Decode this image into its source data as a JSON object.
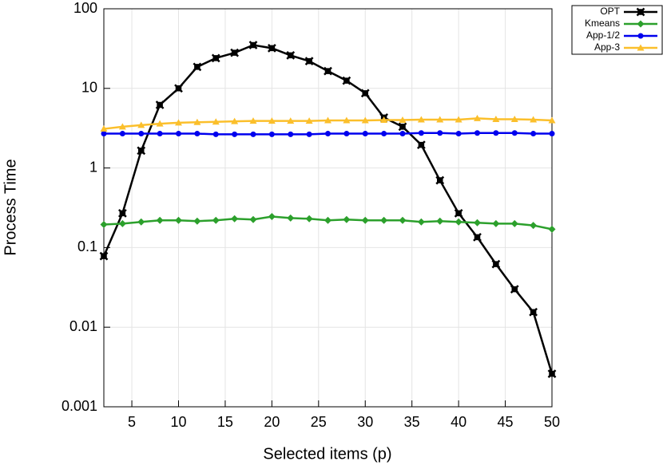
{
  "chart_data": {
    "type": "line",
    "x_label": "Selected items (p)",
    "y_label": "Process Time",
    "x": [
      2,
      4,
      6,
      8,
      10,
      12,
      14,
      16,
      18,
      20,
      22,
      24,
      26,
      28,
      30,
      32,
      34,
      36,
      38,
      40,
      42,
      44,
      46,
      48,
      50
    ],
    "xlim": [
      2,
      50
    ],
    "xticks": [
      5,
      10,
      15,
      20,
      25,
      30,
      35,
      40,
      45,
      50
    ],
    "ylim": [
      0.001,
      100
    ],
    "yticks": [
      0.001,
      0.01,
      0.1,
      1,
      10,
      100
    ],
    "log_y": true,
    "grid": true,
    "legend": "outside-top-right",
    "series": [
      {
        "name": "OPT",
        "color": "#000000",
        "marker": "x",
        "values": [
          0.078,
          0.27,
          1.65,
          6.2,
          10,
          18.6,
          24,
          28,
          35,
          32,
          26,
          22,
          16.5,
          12.5,
          8.7,
          4.3,
          3.3,
          1.95,
          0.7,
          0.27,
          0.135,
          0.062,
          0.03,
          0.0155,
          0.0026
        ]
      },
      {
        "name": "Kmeans",
        "color": "#2ca02c",
        "marker": "diamond",
        "values": [
          0.195,
          0.2,
          0.21,
          0.22,
          0.22,
          0.215,
          0.22,
          0.23,
          0.225,
          0.245,
          0.235,
          0.23,
          0.22,
          0.225,
          0.22,
          0.22,
          0.22,
          0.21,
          0.215,
          0.21,
          0.205,
          0.2,
          0.2,
          0.19,
          0.17
        ]
      },
      {
        "name": "App-1/2",
        "color": "#0000ee",
        "marker": "circle",
        "values": [
          2.7,
          2.7,
          2.7,
          2.7,
          2.7,
          2.7,
          2.65,
          2.65,
          2.65,
          2.65,
          2.65,
          2.65,
          2.7,
          2.7,
          2.7,
          2.7,
          2.7,
          2.75,
          2.75,
          2.7,
          2.75,
          2.75,
          2.75,
          2.7,
          2.7
        ]
      },
      {
        "name": "App-3",
        "color": "#fbbf2b",
        "marker": "triangle",
        "values": [
          3.1,
          3.3,
          3.45,
          3.6,
          3.7,
          3.75,
          3.8,
          3.85,
          3.9,
          3.9,
          3.9,
          3.9,
          3.95,
          3.95,
          3.95,
          4.0,
          4.0,
          4.05,
          4.05,
          4.05,
          4.2,
          4.1,
          4.1,
          4.05,
          3.95
        ]
      }
    ]
  }
}
